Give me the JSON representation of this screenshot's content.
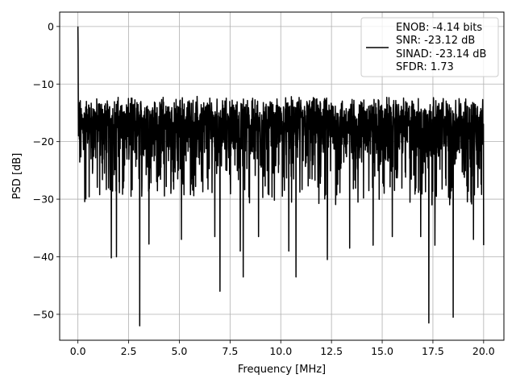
{
  "chart_data": {
    "type": "line",
    "title": "",
    "xlabel": "Frequency [MHz]",
    "ylabel": "PSD [dB]",
    "xlim": [
      -0.9,
      21.0
    ],
    "ylim": [
      -54.5,
      2.5
    ],
    "xticks": [
      0.0,
      2.5,
      5.0,
      7.5,
      10.0,
      12.5,
      15.0,
      17.5,
      20.0
    ],
    "xtick_labels": [
      "0.0",
      "2.5",
      "5.0",
      "7.5",
      "10.0",
      "12.5",
      "15.0",
      "17.5",
      "20.0"
    ],
    "yticks": [
      0,
      -10,
      -20,
      -30,
      -40,
      -50
    ],
    "ytick_labels": [
      "0",
      "−10",
      "−20",
      "−30",
      "−40",
      "−50"
    ],
    "grid": true,
    "legend_placement": "upper right",
    "legend_entries": [
      "ENOB: -4.14 bits",
      "SNR: -23.12 dB",
      "SINAD: -23.14 dB",
      "SFDR: 1.73"
    ],
    "series": [
      {
        "color": "#000000",
        "note_points": "noise-like PSD trace: baseline level roughly -18 dB, fluctuating between about -8 and -30 dB; peak at 0 MHz near 0 dB; deep notches listed below",
        "x_range": [
          0.0,
          20.0
        ],
        "peak": {
          "x": 0.0,
          "y": 0.0
        },
        "notches": [
          {
            "x": 1.65,
            "y": -40.2
          },
          {
            "x": 1.9,
            "y": -40.0
          },
          {
            "x": 3.05,
            "y": -52.0
          },
          {
            "x": 3.5,
            "y": -37.8
          },
          {
            "x": 5.1,
            "y": -37.0
          },
          {
            "x": 6.75,
            "y": -36.5
          },
          {
            "x": 7.0,
            "y": -46.0
          },
          {
            "x": 8.0,
            "y": -39.0
          },
          {
            "x": 8.15,
            "y": -43.5
          },
          {
            "x": 8.9,
            "y": -36.5
          },
          {
            "x": 10.4,
            "y": -39.0
          },
          {
            "x": 10.75,
            "y": -43.5
          },
          {
            "x": 12.3,
            "y": -40.5
          },
          {
            "x": 13.4,
            "y": -38.5
          },
          {
            "x": 14.55,
            "y": -38.0
          },
          {
            "x": 15.5,
            "y": -36.5
          },
          {
            "x": 16.9,
            "y": -36.5
          },
          {
            "x": 17.3,
            "y": -51.5
          },
          {
            "x": 17.6,
            "y": -38.0
          },
          {
            "x": 18.5,
            "y": -50.5
          },
          {
            "x": 19.5,
            "y": -37.0
          },
          {
            "x": 20.0,
            "y": -38.0
          }
        ]
      }
    ]
  }
}
